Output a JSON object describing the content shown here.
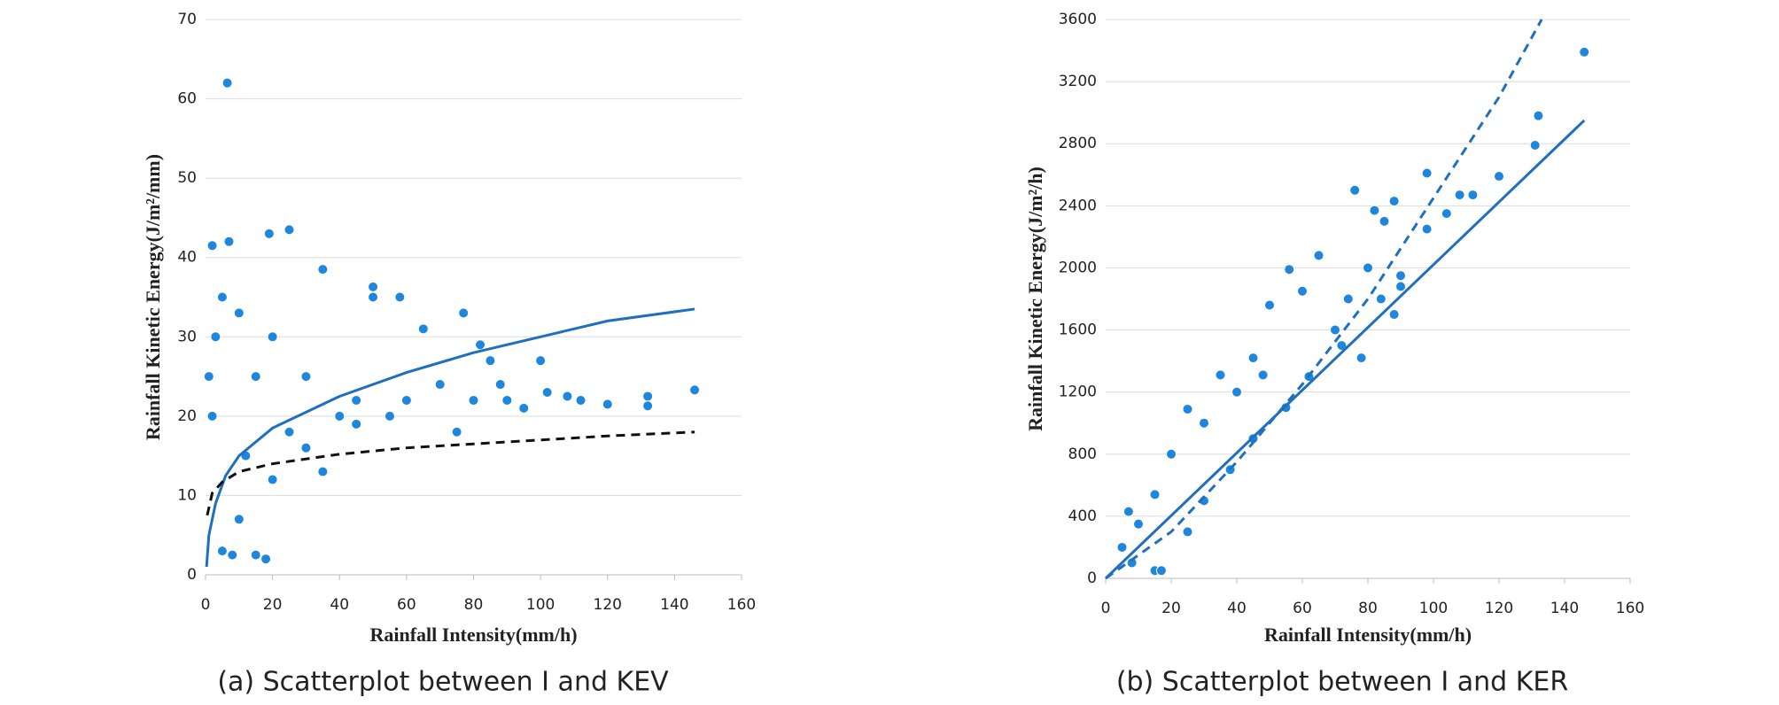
{
  "chart_data": [
    {
      "type": "scatter",
      "xlabel": "Rainfall Intensity(mm/h)",
      "ylabel": "Rainfall Kinetic Energy(J/m²/mm)",
      "caption": "(a) Scatterplot between I and KEV",
      "color": "#1f86dd",
      "x": [
        6.5,
        2,
        7,
        19,
        25,
        35,
        50,
        58,
        50,
        65,
        77,
        82,
        90,
        100,
        102,
        108,
        112,
        120,
        132,
        132,
        146,
        95,
        88,
        85,
        70,
        60,
        55,
        45,
        40,
        30,
        20,
        10,
        5,
        3,
        15,
        25,
        30,
        20,
        10,
        5,
        8,
        15,
        18,
        35,
        45,
        75,
        80,
        1,
        2,
        12
      ],
      "values": [
        62,
        41.5,
        42,
        43,
        43.5,
        38.5,
        36.3,
        35,
        35,
        31,
        33,
        29,
        22,
        27,
        23,
        22.5,
        22,
        21.5,
        22.5,
        21.3,
        23.3,
        21,
        24,
        27,
        24,
        22,
        20,
        22,
        20,
        25,
        30,
        33,
        35,
        30,
        25,
        18,
        16,
        12,
        7,
        3,
        2.5,
        2.5,
        2,
        13,
        19,
        18,
        22,
        25,
        20,
        15
      ],
      "fits": [
        {
          "color": "#1f6fbf",
          "dash": false,
          "x": [
            0.3,
            1,
            3,
            6,
            10,
            20,
            40,
            60,
            80,
            100,
            120,
            146
          ],
          "values": [
            1,
            5,
            9,
            12.5,
            15,
            18.5,
            22.5,
            25.5,
            28,
            30,
            32,
            33.5
          ]
        },
        {
          "color": "#111111",
          "dash": true,
          "x": [
            0.5,
            2,
            5,
            10,
            20,
            40,
            60,
            80,
            100,
            120,
            146
          ],
          "values": [
            7.5,
            10.3,
            11.7,
            13,
            14,
            15.2,
            16,
            16.5,
            17,
            17.5,
            18
          ]
        }
      ],
      "xlim": [
        0,
        160
      ],
      "xticks": [
        0,
        20,
        40,
        60,
        80,
        100,
        120,
        140,
        160
      ],
      "ylim": [
        0,
        70
      ],
      "yticks": [
        0,
        10,
        20,
        30,
        40,
        50,
        60,
        70
      ],
      "grid": true
    },
    {
      "type": "scatter",
      "xlabel": "Rainfall Intensity(mm/h)",
      "ylabel": "Rainfall Kinetic Energy(J/m²/h)",
      "caption": "(b) Scatterplot between I and KER",
      "color": "#1f86dd",
      "x": [
        146,
        132,
        131,
        120,
        112,
        108,
        104,
        98,
        98,
        88,
        85,
        82,
        76,
        90,
        84,
        80,
        74,
        78,
        70,
        65,
        60,
        56,
        50,
        48,
        45,
        35,
        40,
        30,
        25,
        20,
        15,
        10,
        7,
        5,
        8,
        15,
        17,
        30,
        38,
        55,
        62,
        72,
        88,
        90,
        25,
        45
      ],
      "values": [
        3390,
        2980,
        2790,
        2590,
        2470,
        2470,
        2350,
        2610,
        2250,
        2430,
        2300,
        2370,
        2500,
        1950,
        1800,
        2000,
        1800,
        1420,
        1600,
        2080,
        1850,
        1990,
        1760,
        1310,
        1420,
        1310,
        1200,
        1000,
        1090,
        800,
        540,
        350,
        430,
        200,
        100,
        50,
        50,
        500,
        700,
        1100,
        1300,
        1500,
        1700,
        1880,
        300,
        900
      ],
      "fits": [
        {
          "color": "#1f6fbf",
          "dash": false,
          "x": [
            0,
            146
          ],
          "values": [
            0,
            2950
          ]
        },
        {
          "color": "#1f6fbf",
          "dash": true,
          "x": [
            0,
            20,
            40,
            60,
            80,
            100,
            120,
            133
          ],
          "values": [
            0,
            300,
            750,
            1250,
            1800,
            2450,
            3100,
            3600
          ]
        }
      ],
      "xlim": [
        0,
        160
      ],
      "xticks": [
        0,
        20,
        40,
        60,
        80,
        100,
        120,
        140,
        160
      ],
      "ylim": [
        0,
        3600
      ],
      "yticks": [
        0,
        400,
        800,
        1200,
        1600,
        2000,
        2400,
        2800,
        3200,
        3600
      ],
      "grid": true
    }
  ]
}
